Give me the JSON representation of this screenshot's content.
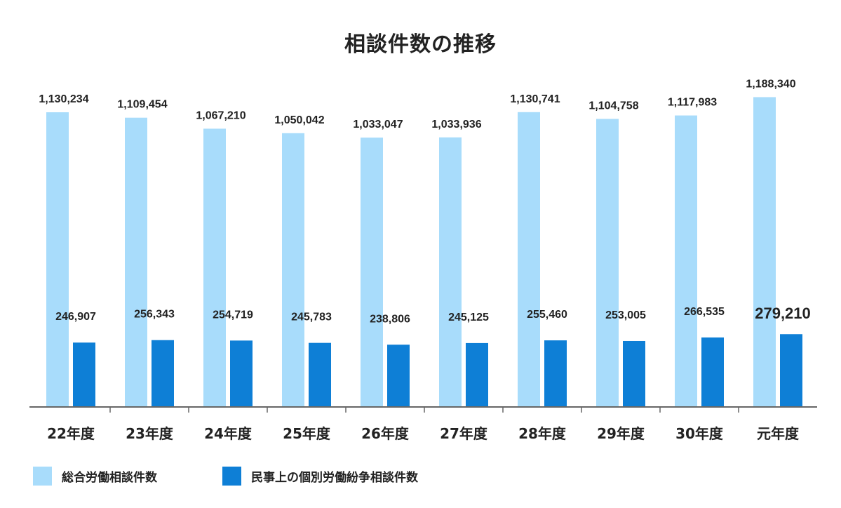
{
  "chart_data": {
    "type": "bar",
    "title": "相談件数の推移",
    "categories": [
      "22年度",
      "23年度",
      "24年度",
      "25年度",
      "26年度",
      "27年度",
      "28年度",
      "29年度",
      "30年度",
      "元年度"
    ],
    "series": [
      {
        "name": "総合労働相談件数",
        "color": "#a8dcfb",
        "values": [
          1130234,
          1109454,
          1067210,
          1050042,
          1033047,
          1033936,
          1130741,
          1104758,
          1117983,
          1188340
        ],
        "labels": [
          "1,130,234",
          "1,109,454",
          "1,067,210",
          "1,050,042",
          "1,033,047",
          "1,033,936",
          "1,130,741",
          "1,104,758",
          "1,117,983",
          "1,188,340"
        ]
      },
      {
        "name": "民事上の個別労働紛争相談件数",
        "color": "#0e7fd6",
        "values": [
          246907,
          256343,
          254719,
          245783,
          238806,
          245125,
          255460,
          253005,
          266535,
          279210
        ],
        "labels": [
          "246,907",
          "256,343",
          "254,719",
          "245,783",
          "238,806",
          "245,125",
          "255,460",
          "253,005",
          "266,535",
          "279,210"
        ]
      }
    ],
    "legend_position": "bottom-left",
    "grid": false
  }
}
